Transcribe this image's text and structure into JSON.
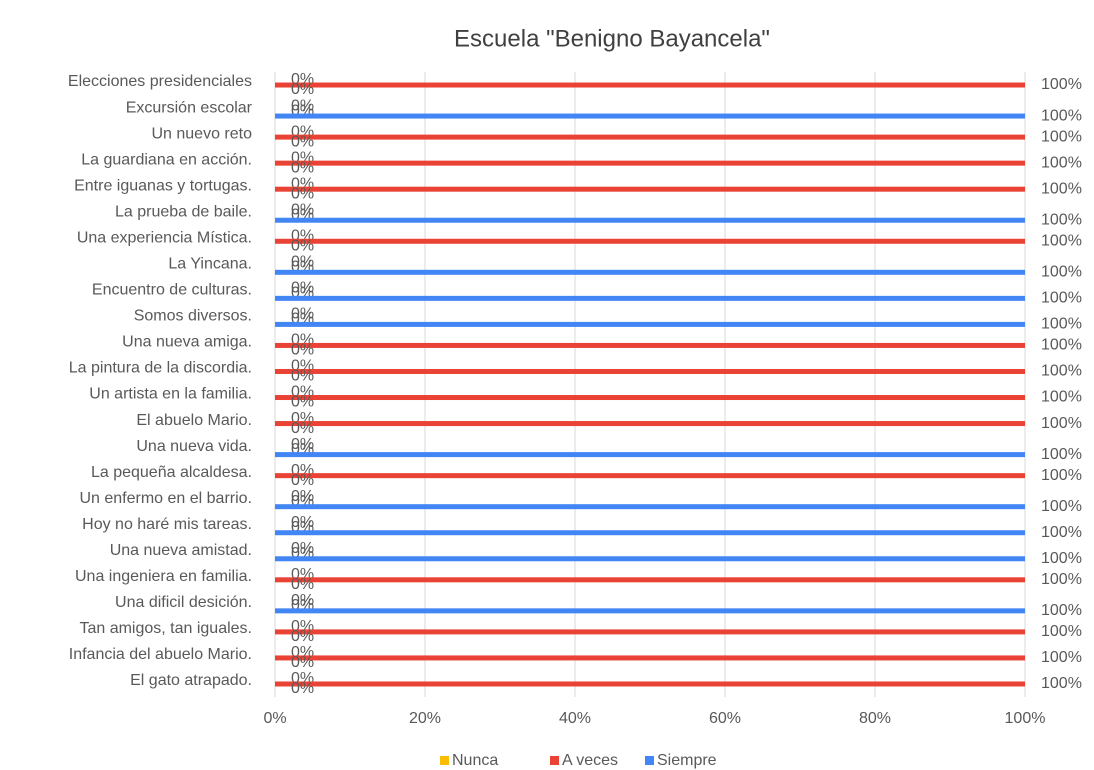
{
  "chart_data": {
    "type": "hbar",
    "title": "Escuela \"Benigno Bayancela\"",
    "categories": [
      "Elecciones presidenciales",
      "Excursión escolar",
      "Un nuevo reto",
      "La guardiana en acción.",
      "Entre iguanas y tortugas.",
      "La prueba de baile.",
      "Una experiencia Mística.",
      "La Yincana.",
      "Encuentro de culturas.",
      "Somos diversos.",
      "Una nueva amiga.",
      "La pintura de la discordia.",
      "Un artista en la familia.",
      "El abuelo Mario.",
      "Una nueva vida.",
      "La pequeña alcaldesa.",
      "Un enfermo en el barrio.",
      "Hoy no haré mis tareas.",
      "Una nueva amistad.",
      "Una ingeniera en familia.",
      "Una dificil desición.",
      "Tan amigos, tan iguales.",
      "Infancia del abuelo Mario.",
      "El gato atrapado."
    ],
    "series": [
      {
        "name": "Nunca",
        "color": "#fbbc04",
        "values": [
          0,
          0,
          0,
          0,
          0,
          0,
          0,
          0,
          0,
          0,
          0,
          0,
          0,
          0,
          0,
          0,
          0,
          0,
          0,
          0,
          0,
          0,
          0,
          0
        ],
        "value_labels": [
          "0%",
          "0%",
          "0%",
          "0%",
          "0%",
          "0%",
          "0%",
          "0%",
          "0%",
          "0%",
          "0%",
          "0%",
          "0%",
          "0%",
          "0%",
          "0%",
          "0%",
          "0%",
          "0%",
          "0%",
          "0%",
          "0%",
          "0%",
          "0%"
        ]
      },
      {
        "name": "A veces",
        "color": "#ea4335",
        "values": [
          100,
          0,
          100,
          100,
          100,
          0,
          100,
          0,
          0,
          0,
          100,
          100,
          100,
          100,
          0,
          100,
          0,
          0,
          0,
          100,
          0,
          100,
          100,
          100
        ],
        "value_labels": [
          "100%",
          "0%",
          "100%",
          "100%",
          "100%",
          "0%",
          "100%",
          "0%",
          "0%",
          "0%",
          "100%",
          "100%",
          "100%",
          "100%",
          "0%",
          "100%",
          "0%",
          "0%",
          "0%",
          "100%",
          "0%",
          "100%",
          "100%",
          "100%"
        ]
      },
      {
        "name": "Siempre",
        "color": "#4285f4",
        "values": [
          0,
          100,
          0,
          0,
          0,
          100,
          0,
          100,
          100,
          100,
          0,
          0,
          0,
          0,
          100,
          0,
          100,
          100,
          100,
          0,
          100,
          0,
          0,
          0
        ],
        "value_labels": [
          "0%",
          "100%",
          "0%",
          "0%",
          "0%",
          "100%",
          "0%",
          "100%",
          "100%",
          "100%",
          "0%",
          "0%",
          "0%",
          "0%",
          "100%",
          "0%",
          "100%",
          "100%",
          "100%",
          "0%",
          "100%",
          "0%",
          "0%",
          "0%"
        ]
      }
    ],
    "xlim": [
      0,
      100
    ],
    "xticks": [
      {
        "value": 0,
        "label": "0%"
      },
      {
        "value": 20,
        "label": "20%"
      },
      {
        "value": 40,
        "label": "40%"
      },
      {
        "value": 60,
        "label": "60%"
      },
      {
        "value": 80,
        "label": "80%"
      },
      {
        "value": 100,
        "label": "100%"
      }
    ],
    "grid": true,
    "legend": "bottom"
  }
}
